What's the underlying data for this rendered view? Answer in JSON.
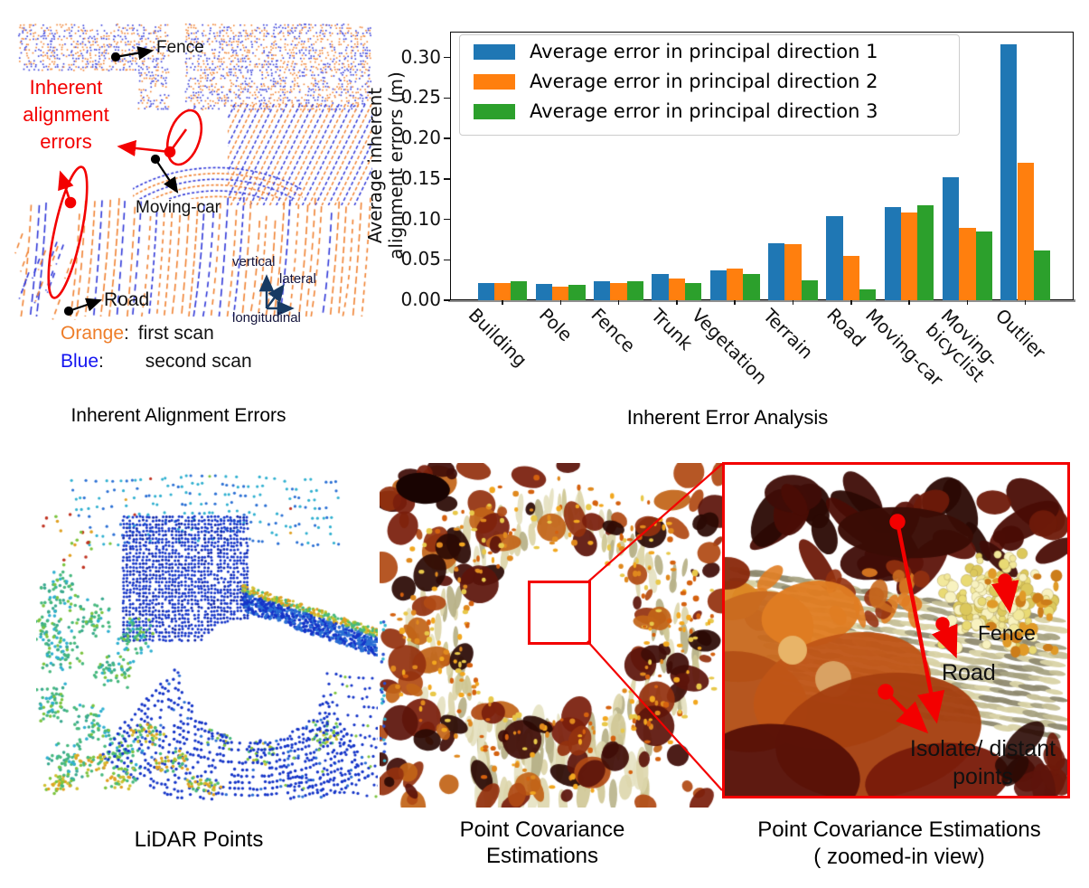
{
  "alignment_panel": {
    "error_lines": [
      "Inherent",
      "alignment",
      "errors"
    ],
    "fence_label": "Fence",
    "moving_car_label": "Moving-car",
    "road_label": "Road",
    "axis_vertical": "vertical",
    "axis_lateral": "lateral",
    "axis_longitudinal": "longitudinal",
    "legend_orange_word": "Orange",
    "legend_orange_sep": ":",
    "legend_orange_desc": "first scan",
    "legend_blue_word": "Blue",
    "legend_blue_sep": ":",
    "legend_blue_desc": "second scan",
    "caption": "Inherent Alignment Errors",
    "colors": {
      "first_scan_orange": "#ee7d28",
      "second_scan_blue": "#1414f0",
      "annotation_red": "#f30000",
      "axis_arrow_navy": "#173a63"
    }
  },
  "chart_data": {
    "type": "bar",
    "title": "Inherent Error Analysis",
    "ylabel": "Average inherent\nalignment errors (m)",
    "xlabel": "",
    "categories": [
      "Building",
      "Pole",
      "Fence",
      "Trunk",
      "Vegetation",
      "Terrain",
      "Road",
      "Moving-car",
      "Moving-\nbicyclist",
      "Outlier"
    ],
    "series": [
      {
        "name": "Average error in principal direction 1",
        "color": "#1f77b4",
        "values": [
          0.021,
          0.02,
          0.023,
          0.033,
          0.037,
          0.071,
          0.104,
          0.115,
          0.152,
          0.316
        ]
      },
      {
        "name": "Average error in principal direction 2",
        "color": "#ff7f0e",
        "values": [
          0.021,
          0.017,
          0.021,
          0.027,
          0.039,
          0.069,
          0.055,
          0.108,
          0.09,
          0.17
        ]
      },
      {
        "name": "Average error in principal direction 3",
        "color": "#2ca02c",
        "values": [
          0.024,
          0.019,
          0.024,
          0.021,
          0.033,
          0.025,
          0.014,
          0.117,
          0.085,
          0.061
        ]
      }
    ],
    "ylim": [
      0,
      0.332
    ],
    "yticks": [
      0.0,
      0.05,
      0.1,
      0.15,
      0.2,
      0.25,
      0.3
    ],
    "legend_position": "upper left",
    "grid": false
  },
  "bottom_row": {
    "caption_lidar": "LiDAR Points",
    "caption_cov": [
      "Point Covariance",
      "Estimations"
    ],
    "caption_zoom": [
      "Point Covariance Estimations",
      "( zoomed-in view)"
    ],
    "zoom_annotations": {
      "fence": "Fence",
      "road": "Road",
      "isolate": [
        "Isolate/ distant",
        "points"
      ]
    }
  }
}
